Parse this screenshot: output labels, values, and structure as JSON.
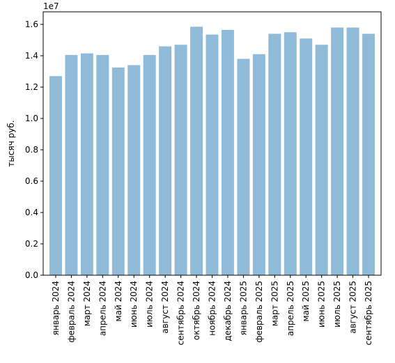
{
  "chart_data": {
    "type": "bar",
    "title": "",
    "xlabel": "",
    "ylabel": "тысяч руб.",
    "y_offset_text": "1e7",
    "ylim": [
      0,
      16800000
    ],
    "yticks": [
      0,
      2000000,
      4000000,
      6000000,
      8000000,
      10000000,
      12000000,
      14000000,
      16000000
    ],
    "ytick_labels": [
      "0.0",
      "0.2",
      "0.4",
      "0.6",
      "0.8",
      "1.0",
      "1.2",
      "1.4",
      "1.6"
    ],
    "bar_color": "#8fbbd9",
    "grid": false,
    "legend": "none",
    "categories": [
      "январь 2024",
      "февраль 2024",
      "март 2024",
      "апрель 2024",
      "май 2024",
      "июнь 2024",
      "июль 2024",
      "август 2024",
      "сентябрь 2024",
      "октябрь 2024",
      "ноябрь 2024",
      "декабрь 2024",
      "январь 2025",
      "февраль 2025",
      "март 2025",
      "апрель 2025",
      "май 2025",
      "июнь 2025",
      "июль 2025",
      "август 2025",
      "сентябрь 2025"
    ],
    "values": [
      12700000,
      14050000,
      14150000,
      14050000,
      13250000,
      13400000,
      14050000,
      14600000,
      14700000,
      15850000,
      15350000,
      15650000,
      13800000,
      14100000,
      15400000,
      15500000,
      15100000,
      14700000,
      15800000,
      15800000,
      15400000
    ]
  }
}
